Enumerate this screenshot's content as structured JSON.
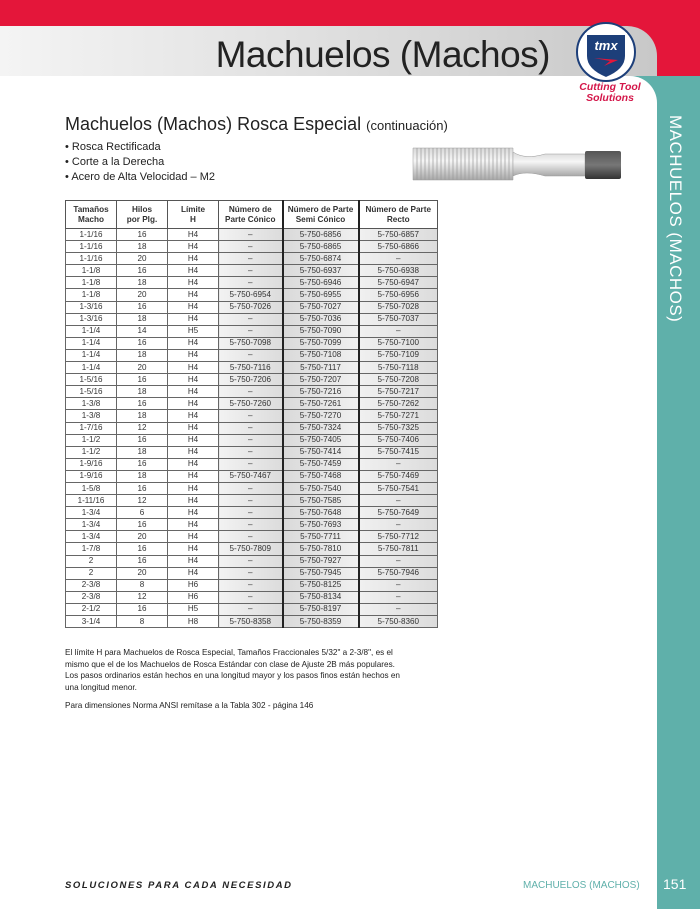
{
  "header": {
    "title": "Machuelos (Machos)",
    "logo_text": "tmx",
    "tagline_line1": "Cutting Tool",
    "tagline_line2": "Solutions"
  },
  "colors": {
    "brand_red": "#e4163a",
    "teal": "#5fb0aa",
    "logo_navy": "#1d3f7a"
  },
  "side_tab": "MACHUELOS (MACHOS)",
  "section": {
    "title": "Machuelos (Machos) Rosca Especial",
    "suffix": "(continuación)",
    "bullets": [
      "Rosca Rectificada",
      "Corte a la Derecha",
      "Acero de Alta Velocidad – M2"
    ]
  },
  "table": {
    "headers": [
      [
        "Tamaños",
        "Macho"
      ],
      [
        "Hilos",
        "por Plg."
      ],
      [
        "Límite",
        "H"
      ],
      [
        "Número de",
        "Parte Cónico"
      ],
      [
        "Número de Parte",
        "Semi Cónico"
      ],
      [
        "Número de Parte",
        "Recto"
      ]
    ],
    "rows": [
      [
        "1-1/16",
        "16",
        "H4",
        "–",
        "5-750-6856",
        "5-750-6857"
      ],
      [
        "1-1/16",
        "18",
        "H4",
        "–",
        "5-750-6865",
        "5-750-6866"
      ],
      [
        "1-1/16",
        "20",
        "H4",
        "–",
        "5-750-6874",
        "–"
      ],
      [
        "1-1/8",
        "16",
        "H4",
        "–",
        "5-750-6937",
        "5-750-6938"
      ],
      [
        "1-1/8",
        "18",
        "H4",
        "–",
        "5-750-6946",
        "5-750-6947"
      ],
      [
        "1-1/8",
        "20",
        "H4",
        "5-750-6954",
        "5-750-6955",
        "5-750-6956"
      ],
      [
        "1-3/16",
        "16",
        "H4",
        "5-750-7026",
        "5-750-7027",
        "5-750-7028"
      ],
      [
        "1-3/16",
        "18",
        "H4",
        "–",
        "5-750-7036",
        "5-750-7037"
      ],
      [
        "1-1/4",
        "14",
        "H5",
        "–",
        "5-750-7090",
        "–"
      ],
      [
        "1-1/4",
        "16",
        "H4",
        "5-750-7098",
        "5-750-7099",
        "5-750-7100"
      ],
      [
        "1-1/4",
        "18",
        "H4",
        "–",
        "5-750-7108",
        "5-750-7109"
      ],
      [
        "1-1/4",
        "20",
        "H4",
        "5-750-7116",
        "5-750-7117",
        "5-750-7118"
      ],
      [
        "1-5/16",
        "16",
        "H4",
        "5-750-7206",
        "5-750-7207",
        "5-750-7208"
      ],
      [
        "1-5/16",
        "18",
        "H4",
        "–",
        "5-750-7216",
        "5-750-7217"
      ],
      [
        "1-3/8",
        "16",
        "H4",
        "5-750-7260",
        "5-750-7261",
        "5-750-7262"
      ],
      [
        "1-3/8",
        "18",
        "H4",
        "–",
        "5-750-7270",
        "5-750-7271"
      ],
      [
        "1-7/16",
        "12",
        "H4",
        "–",
        "5-750-7324",
        "5-750-7325"
      ],
      [
        "1-1/2",
        "16",
        "H4",
        "–",
        "5-750-7405",
        "5-750-7406"
      ],
      [
        "1-1/2",
        "18",
        "H4",
        "–",
        "5-750-7414",
        "5-750-7415"
      ],
      [
        "1-9/16",
        "16",
        "H4",
        "–",
        "5-750-7459",
        "–"
      ],
      [
        "1-9/16",
        "18",
        "H4",
        "5-750-7467",
        "5-750-7468",
        "5-750-7469"
      ],
      [
        "1-5/8",
        "16",
        "H4",
        "–",
        "5-750-7540",
        "5-750-7541"
      ],
      [
        "1-11/16",
        "12",
        "H4",
        "–",
        "5-750-7585",
        "–"
      ],
      [
        "1-3/4",
        "6",
        "H4",
        "–",
        "5-750-7648",
        "5-750-7649"
      ],
      [
        "1-3/4",
        "16",
        "H4",
        "–",
        "5-750-7693",
        "–"
      ],
      [
        "1-3/4",
        "20",
        "H4",
        "–",
        "5-750-7711",
        "5-750-7712"
      ],
      [
        "1-7/8",
        "16",
        "H4",
        "5-750-7809",
        "5-750-7810",
        "5-750-7811"
      ],
      [
        "2",
        "16",
        "H4",
        "–",
        "5-750-7927",
        "–"
      ],
      [
        "2",
        "20",
        "H4",
        "–",
        "5-750-7945",
        "5-750-7946"
      ],
      [
        "2-3/8",
        "8",
        "H6",
        "–",
        "5-750-8125",
        "–"
      ],
      [
        "2-3/8",
        "12",
        "H6",
        "–",
        "5-750-8134",
        "–"
      ],
      [
        "2-1/2",
        "16",
        "H5",
        "–",
        "5-750-8197",
        "–"
      ],
      [
        "3-1/4",
        "8",
        "H8",
        "5-750-8358",
        "5-750-8359",
        "5-750-8360"
      ]
    ]
  },
  "notes": {
    "paragraph": "El límite H para Machuelos de Rosca Especial, Tamaños Fraccionales 5/32\" a 2-3/8\", es el mismo que el de los Machuelos de Rosca Estándar con clase de Ajuste 2B más populares. Los pasos ordinarios están hechos en una longitud mayor y los pasos finos están hechos en una longitud menor.",
    "reference": "Para dimensiones Norma ANSI remítase a la Tabla 302 - página 146"
  },
  "footer": {
    "slogan": "SOLUCIONES PARA CADA NECESIDAD",
    "section": "MACHUELOS (MACHOS)",
    "page": "151"
  }
}
